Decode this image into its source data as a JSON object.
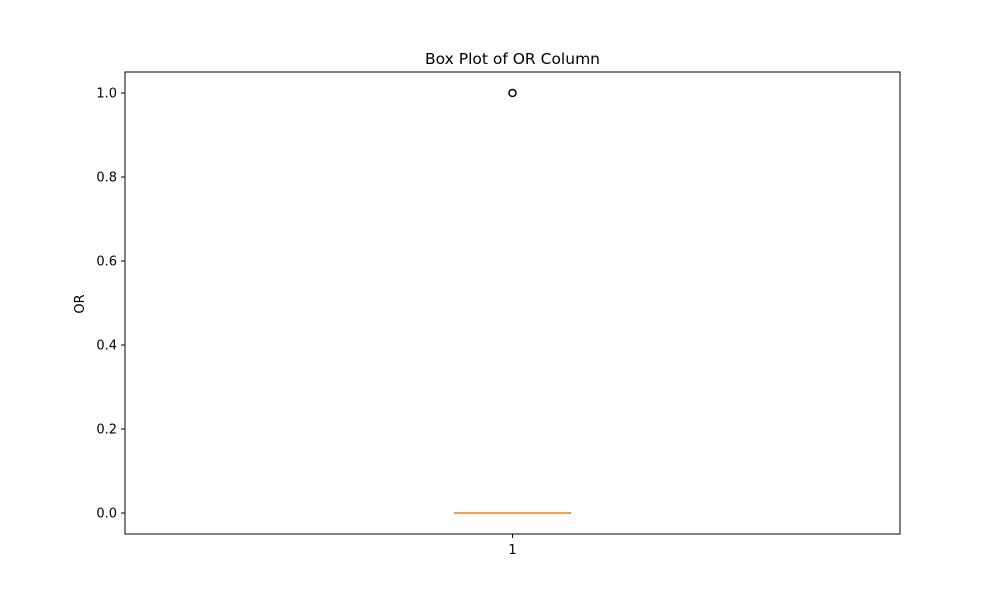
{
  "chart_data": {
    "type": "box",
    "title": "Box Plot of OR Column",
    "xlabel": "",
    "ylabel": "OR",
    "categories": [
      "1"
    ],
    "ylim": [
      -0.05,
      1.05
    ],
    "yticks": [
      0.0,
      0.2,
      0.4,
      0.6,
      0.8,
      1.0
    ],
    "ytick_labels": [
      "0.0",
      "0.2",
      "0.4",
      "0.6",
      "0.8",
      "1.0"
    ],
    "boxes": [
      {
        "category": "1",
        "whisker_low": 0.0,
        "q1": 0.0,
        "median": 0.0,
        "q3": 0.0,
        "whisker_high": 0.0,
        "outliers": [
          1.0
        ]
      }
    ],
    "grid": false,
    "colors": {
      "box": "#000000",
      "median": "#ff7f0e",
      "outlier": "#000000"
    }
  }
}
